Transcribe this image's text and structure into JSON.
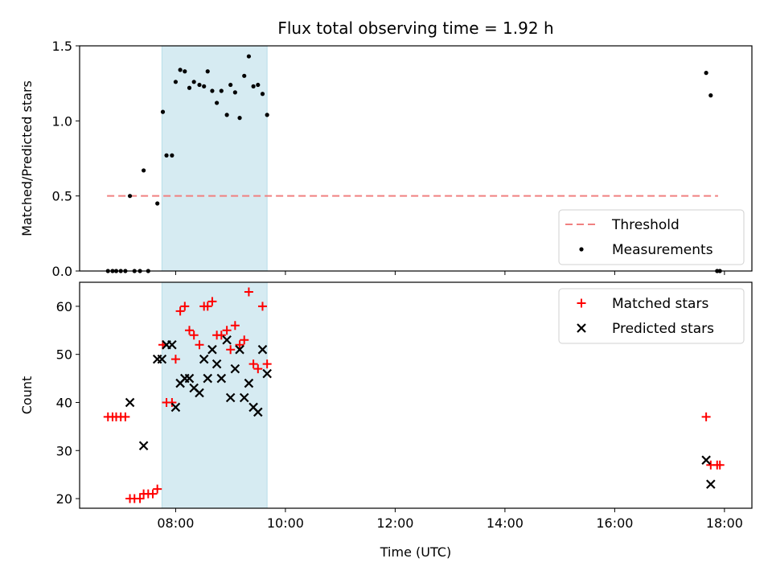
{
  "chart_data": [
    {
      "type": "scatter",
      "title": "Flux total observing time = 1.92 h",
      "xlabel": "",
      "ylabel": "Matched/Predicted stars",
      "x_unit": "hours (UTC)",
      "xlim": [
        "06:15",
        "18:30"
      ],
      "ylim": [
        0,
        1.5
      ],
      "yticks": [
        "0.0",
        "0.5",
        "1.0",
        "1.5"
      ],
      "xticks": [
        "08:00",
        "10:00",
        "12:00",
        "14:00",
        "16:00",
        "18:00"
      ],
      "show_xtick_labels": false,
      "grid": false,
      "legend_position": "lower-right",
      "legend": [
        "Threshold",
        "Measurements"
      ],
      "shaded_region": {
        "x_start": "07:45",
        "x_end": "09:40",
        "color": "#add8e6"
      },
      "threshold": {
        "name": "Threshold",
        "y": 0.5,
        "x_start": "06:45",
        "x_end": "17:53",
        "color": "#f08080",
        "style": "dashed"
      },
      "series": [
        {
          "name": "Measurements",
          "color": "#000000",
          "points": [
            [
              "06:46",
              0
            ],
            [
              "06:51",
              0
            ],
            [
              "06:55",
              0
            ],
            [
              "07:00",
              0
            ],
            [
              "07:05",
              0
            ],
            [
              "07:10",
              0.5
            ],
            [
              "07:15",
              0
            ],
            [
              "07:21",
              0
            ],
            [
              "07:25",
              0.67
            ],
            [
              "07:30",
              0
            ],
            [
              "07:40",
              0.45
            ],
            [
              "07:46",
              1.06
            ],
            [
              "07:50",
              0.77
            ],
            [
              "07:56",
              0.77
            ],
            [
              "08:00",
              1.26
            ],
            [
              "08:05",
              1.34
            ],
            [
              "08:10",
              1.33
            ],
            [
              "08:15",
              1.22
            ],
            [
              "08:20",
              1.26
            ],
            [
              "08:26",
              1.24
            ],
            [
              "08:31",
              1.23
            ],
            [
              "08:35",
              1.33
            ],
            [
              "08:40",
              1.2
            ],
            [
              "08:45",
              1.12
            ],
            [
              "08:50",
              1.2
            ],
            [
              "08:56",
              1.04
            ],
            [
              "09:00",
              1.24
            ],
            [
              "09:05",
              1.19
            ],
            [
              "09:10",
              1.02
            ],
            [
              "09:15",
              1.3
            ],
            [
              "09:20",
              1.43
            ],
            [
              "09:25",
              1.23
            ],
            [
              "09:30",
              1.24
            ],
            [
              "09:35",
              1.18
            ],
            [
              "09:40",
              1.04
            ],
            [
              "17:40",
              1.32
            ],
            [
              "17:45",
              1.17
            ],
            [
              "17:52",
              0
            ],
            [
              "17:55",
              0
            ]
          ]
        }
      ]
    },
    {
      "type": "scatter",
      "title": "",
      "xlabel": "Time (UTC)",
      "ylabel": "Count",
      "x_unit": "hours (UTC)",
      "xlim": [
        "06:15",
        "18:30"
      ],
      "ylim": [
        18,
        65
      ],
      "yticks": [
        "20",
        "30",
        "40",
        "50",
        "60"
      ],
      "xticks": [
        "08:00",
        "10:00",
        "12:00",
        "14:00",
        "16:00",
        "18:00"
      ],
      "grid": false,
      "legend_position": "top-right",
      "legend": [
        "Matched stars",
        "Predicted stars"
      ],
      "shaded_region": {
        "x_start": "07:45",
        "x_end": "09:40",
        "color": "#add8e6"
      },
      "series": [
        {
          "name": "Matched stars",
          "marker": "plus",
          "color": "#ff0000",
          "points": [
            [
              "06:46",
              37
            ],
            [
              "06:51",
              37
            ],
            [
              "06:55",
              37
            ],
            [
              "07:00",
              37
            ],
            [
              "07:05",
              37
            ],
            [
              "07:10",
              20
            ],
            [
              "07:15",
              20
            ],
            [
              "07:21",
              20
            ],
            [
              "07:25",
              21
            ],
            [
              "07:30",
              21
            ],
            [
              "07:35",
              21
            ],
            [
              "07:40",
              22
            ],
            [
              "07:46",
              52
            ],
            [
              "07:50",
              40
            ],
            [
              "07:56",
              40
            ],
            [
              "08:00",
              49
            ],
            [
              "08:05",
              59
            ],
            [
              "08:10",
              60
            ],
            [
              "08:15",
              55
            ],
            [
              "08:20",
              54
            ],
            [
              "08:26",
              52
            ],
            [
              "08:31",
              60
            ],
            [
              "08:35",
              60
            ],
            [
              "08:40",
              61
            ],
            [
              "08:45",
              54
            ],
            [
              "08:50",
              54
            ],
            [
              "08:56",
              55
            ],
            [
              "09:00",
              51
            ],
            [
              "09:05",
              56
            ],
            [
              "09:10",
              52
            ],
            [
              "09:15",
              53
            ],
            [
              "09:20",
              63
            ],
            [
              "09:25",
              48
            ],
            [
              "09:30",
              47
            ],
            [
              "09:35",
              60
            ],
            [
              "09:40",
              48
            ],
            [
              "17:40",
              37
            ],
            [
              "17:45",
              27
            ],
            [
              "17:52",
              27
            ],
            [
              "17:55",
              27
            ]
          ]
        },
        {
          "name": "Predicted stars",
          "marker": "x",
          "color": "#000000",
          "points": [
            [
              "07:10",
              40
            ],
            [
              "07:25",
              31
            ],
            [
              "07:40",
              49
            ],
            [
              "07:45",
              49
            ],
            [
              "07:50",
              52
            ],
            [
              "07:56",
              52
            ],
            [
              "08:00",
              39
            ],
            [
              "08:05",
              44
            ],
            [
              "08:10",
              45
            ],
            [
              "08:15",
              45
            ],
            [
              "08:20",
              43
            ],
            [
              "08:26",
              42
            ],
            [
              "08:31",
              49
            ],
            [
              "08:35",
              45
            ],
            [
              "08:40",
              51
            ],
            [
              "08:45",
              48
            ],
            [
              "08:50",
              45
            ],
            [
              "08:56",
              53
            ],
            [
              "09:00",
              41
            ],
            [
              "09:05",
              47
            ],
            [
              "09:10",
              51
            ],
            [
              "09:15",
              41
            ],
            [
              "09:20",
              44
            ],
            [
              "09:25",
              39
            ],
            [
              "09:30",
              38
            ],
            [
              "09:35",
              51
            ],
            [
              "09:40",
              46
            ],
            [
              "17:40",
              28
            ],
            [
              "17:45",
              23
            ]
          ]
        }
      ]
    }
  ]
}
